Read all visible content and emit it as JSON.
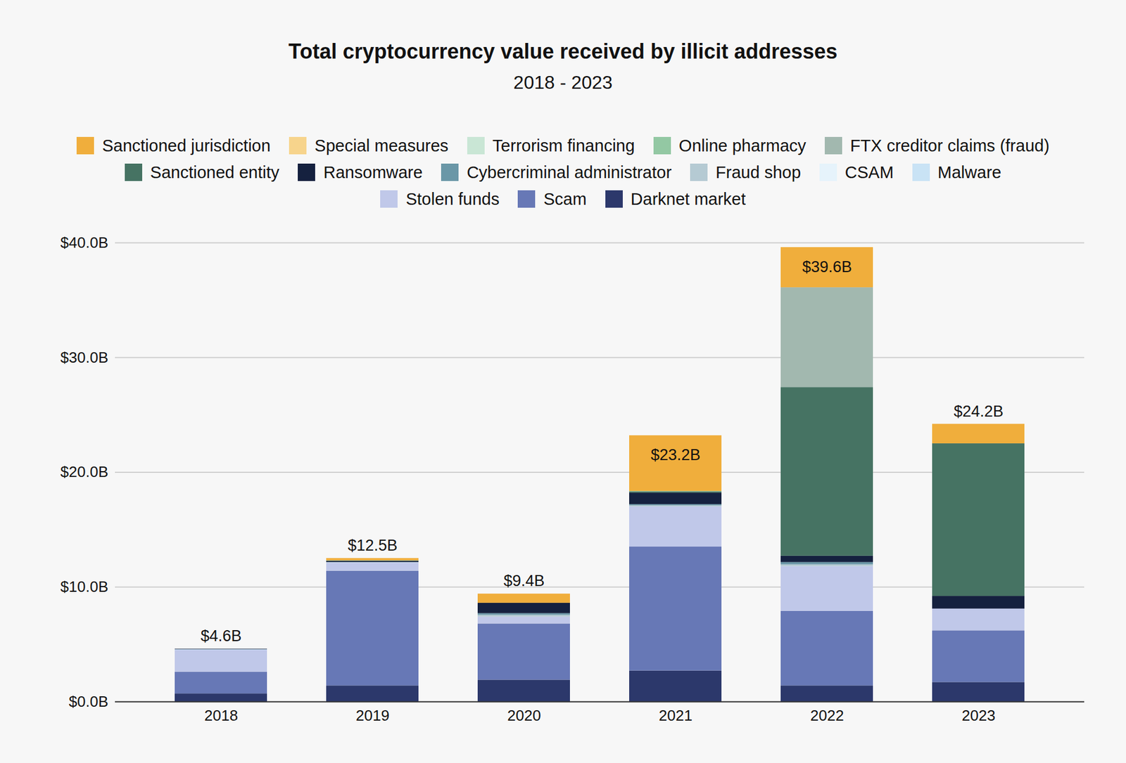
{
  "chart_data": {
    "type": "bar",
    "title": "Total cryptocurrency value received by illicit addresses",
    "subtitle": "2018 - 2023",
    "categories": [
      "2018",
      "2019",
      "2020",
      "2021",
      "2022",
      "2023"
    ],
    "stacked": true,
    "grid": true,
    "legend": "top",
    "ylim": [
      0,
      40
    ],
    "yticks": [
      {
        "value": 0,
        "label": "$0.0B"
      },
      {
        "value": 10,
        "label": "$10.0B"
      },
      {
        "value": 20,
        "label": "$20.0B"
      },
      {
        "value": 30,
        "label": "$30.0B"
      },
      {
        "value": 40,
        "label": "$40.0B"
      }
    ],
    "totals": [
      4.6,
      12.5,
      9.4,
      23.2,
      39.6,
      24.2
    ],
    "total_labels": [
      "$4.6B",
      "$12.5B",
      "$9.4B",
      "$23.2B",
      "$39.6B",
      "$24.2B"
    ],
    "series": [
      {
        "name": "Sanctioned jurisdiction",
        "color": "#f0ae3c",
        "values": [
          0,
          0.2,
          0.8,
          4.85,
          3.5,
          1.7
        ]
      },
      {
        "name": "Special measures",
        "color": "#f7d48c",
        "values": [
          0,
          0,
          0,
          0,
          0,
          0
        ]
      },
      {
        "name": "Terrorism financing",
        "color": "#c9e6d5",
        "values": [
          0,
          0,
          0,
          0,
          0,
          0
        ]
      },
      {
        "name": "Online pharmacy",
        "color": "#93c8a3",
        "values": [
          0,
          0,
          0,
          0.05,
          0,
          0
        ]
      },
      {
        "name": "FTX creditor claims (fraud)",
        "color": "#a2b8af",
        "values": [
          0,
          0,
          0,
          0,
          8.7,
          0
        ]
      },
      {
        "name": "Sanctioned entity",
        "color": "#467363",
        "values": [
          0,
          0.05,
          0,
          0.1,
          14.7,
          13.3
        ]
      },
      {
        "name": "Ransomware",
        "color": "#15213f",
        "values": [
          0.04,
          0.1,
          0.9,
          1.0,
          0.55,
          1.1
        ]
      },
      {
        "name": "Cybercriminal administrator",
        "color": "#6a97a7",
        "values": [
          0,
          0,
          0.15,
          0.1,
          0.2,
          0
        ]
      },
      {
        "name": "Fraud shop",
        "color": "#b5cad3",
        "values": [
          0,
          0,
          0.15,
          0.1,
          0.15,
          0
        ]
      },
      {
        "name": "CSAM",
        "color": "#e6f3fb",
        "values": [
          0,
          0,
          0,
          0,
          0,
          0
        ]
      },
      {
        "name": "Malware",
        "color": "#c9e3f5",
        "values": [
          0.06,
          0.05,
          0,
          0,
          0,
          0
        ]
      },
      {
        "name": "Stolen funds",
        "color": "#c0c8e9",
        "values": [
          1.9,
          0.7,
          0.6,
          3.5,
          3.9,
          1.9
        ]
      },
      {
        "name": "Scam",
        "color": "#6778b6",
        "values": [
          1.9,
          10.0,
          4.9,
          10.8,
          6.5,
          4.5
        ]
      },
      {
        "name": "Darknet market",
        "color": "#2c386b",
        "values": [
          0.7,
          1.4,
          1.9,
          2.7,
          1.4,
          1.7
        ]
      }
    ]
  }
}
